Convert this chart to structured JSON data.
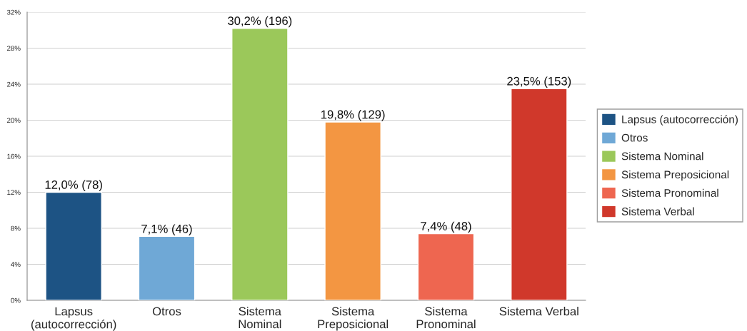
{
  "chart_data": {
    "type": "bar",
    "categories": [
      "Lapsus\n(autocorrección)",
      "Otros",
      "Sistema\nNominal",
      "Sistema\nPreposicional",
      "Sistema\nPronominal",
      "Sistema Verbal"
    ],
    "series": [
      {
        "name": "Lapsus (autocorrección)",
        "color": "#1d5384",
        "values": [
          12.0,
          null,
          null,
          null,
          null,
          null
        ],
        "value_labels": [
          "12,0% (78)",
          null,
          null,
          null,
          null,
          null
        ]
      },
      {
        "name": "Otros",
        "color": "#6fa8d6",
        "values": [
          null,
          7.1,
          null,
          null,
          null,
          null
        ],
        "value_labels": [
          null,
          "7,1% (46)",
          null,
          null,
          null,
          null
        ]
      },
      {
        "name": "Sistema Nominal",
        "color": "#9bc85a",
        "values": [
          null,
          null,
          30.2,
          null,
          null,
          null
        ],
        "value_labels": [
          null,
          null,
          "30,2% (196)",
          null,
          null,
          null
        ]
      },
      {
        "name": "Sistema Preposicional",
        "color": "#f39642",
        "values": [
          null,
          null,
          null,
          19.8,
          null,
          null
        ],
        "value_labels": [
          null,
          null,
          null,
          "19,8% (129)",
          null,
          null
        ]
      },
      {
        "name": "Sistema Pronominal",
        "color": "#ee6650",
        "values": [
          null,
          null,
          null,
          null,
          7.4,
          null
        ],
        "value_labels": [
          null,
          null,
          null,
          null,
          "7,4% (48)",
          null
        ]
      },
      {
        "name": "Sistema Verbal",
        "color": "#d0382b",
        "values": [
          null,
          null,
          null,
          null,
          null,
          23.5
        ],
        "value_labels": [
          null,
          null,
          null,
          null,
          null,
          "23,5% (153)"
        ]
      }
    ],
    "ylim": [
      0,
      32
    ],
    "yticks": [
      {
        "value": 0,
        "label": "0%"
      },
      {
        "value": 4,
        "label": "4%"
      },
      {
        "value": 8,
        "label": "8%"
      },
      {
        "value": 12,
        "label": "12%"
      },
      {
        "value": 16,
        "label": "16%"
      },
      {
        "value": 20,
        "label": "20%"
      },
      {
        "value": 24,
        "label": "24%"
      },
      {
        "value": 28,
        "label": "28%"
      },
      {
        "value": 32,
        "label": "32%"
      }
    ],
    "grid": "y",
    "legend": "right"
  }
}
